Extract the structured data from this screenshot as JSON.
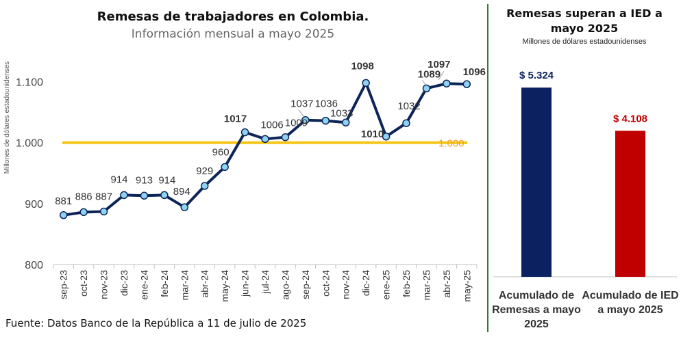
{
  "left_chart": {
    "title": "Remesas de trabajadores  en Colombia.",
    "subtitle": "Información mensual a mayo 2025",
    "ylabel": "Millones de dólares estadounidenses",
    "source": "Fuente: Datos Banco de la República a 11 de julio de 2025"
  },
  "right_chart": {
    "title": "Remesas superan a IED a mayo 2025",
    "subtitle": "Millones de dólares estadounidenses"
  },
  "colors": {
    "line": "#0d2457",
    "marker": "#8fd3f4",
    "reference": "#f5c518",
    "reference_label": "#f0a030",
    "bar_remesas": "#0c2160",
    "bar_ied": "#c00000",
    "divider": "#2e7d32"
  },
  "chart_data": [
    {
      "type": "line",
      "title": "Remesas de trabajadores  en Colombia.",
      "subtitle": "Información mensual a mayo 2025",
      "ylabel": "Millones de dólares estadounidenses",
      "categories": [
        "sep-23",
        "oct-23",
        "nov-23",
        "dic-23",
        "ene-24",
        "feb-24",
        "mar-24",
        "abr-24",
        "may-24",
        "jun-24",
        "jul-24",
        "ago-24",
        "sep-24",
        "oct-24",
        "nov-24",
        "dic-24",
        "ene-25",
        "feb-25",
        "mar-25",
        "abr-25",
        "may-25"
      ],
      "values": [
        881,
        886,
        887,
        914,
        913,
        914,
        894,
        929,
        960,
        1017,
        1006,
        1009,
        1037,
        1036,
        1033,
        1098,
        1010,
        1032,
        1089,
        1097,
        1096
      ],
      "labels": [
        "881",
        "886",
        "887",
        "914",
        "913",
        "914",
        "894",
        "929",
        "960",
        "1017",
        "1006",
        "1009",
        "1037",
        "1036",
        "1033",
        "1098",
        "1010",
        "1032",
        "1089",
        "1097",
        "1096"
      ],
      "ylim": [
        800,
        1150
      ],
      "yticks": [
        800,
        900,
        1000,
        1100
      ],
      "ytick_labels": [
        "800",
        "900",
        "1.000",
        "1.100"
      ],
      "reference_line": {
        "value": 1000,
        "label": "1.000"
      },
      "grid": false
    },
    {
      "type": "bar",
      "title": "Remesas superan a IED a mayo 2025",
      "subtitle": "Millones de dólares estadounidenses",
      "categories": [
        "Acumulado de Remesas a mayo 2025",
        "Acumulado de IED a mayo 2025"
      ],
      "values": [
        5324,
        4108
      ],
      "labels": [
        "$ 5.324",
        "$ 4.108"
      ],
      "ylim": [
        0,
        6500
      ]
    }
  ]
}
